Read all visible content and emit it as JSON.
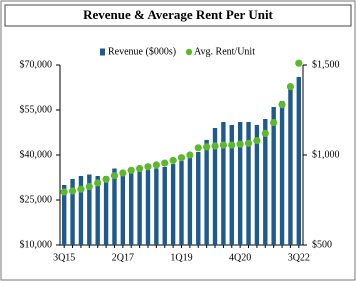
{
  "chart_data": {
    "type": "combo",
    "title": "Revenue & Average Rent Per Unit",
    "categories": [
      "3Q15",
      null,
      null,
      null,
      null,
      null,
      null,
      "2Q17",
      null,
      null,
      null,
      null,
      null,
      null,
      "1Q19",
      null,
      null,
      null,
      null,
      null,
      null,
      "4Q20",
      null,
      null,
      null,
      null,
      null,
      null,
      "3Q22"
    ],
    "series": [
      {
        "name": "Revenue ($000s)",
        "type": "bar",
        "color": "#1f5a8e",
        "axis": "y",
        "values": [
          30000,
          32000,
          33000,
          33500,
          33000,
          33000,
          35500,
          35000,
          35000,
          34500,
          35000,
          35500,
          36000,
          37000,
          38000,
          39000,
          41000,
          45000,
          49000,
          51000,
          50000,
          51000,
          51000,
          50000,
          52000,
          56000,
          58000,
          62000,
          66000
        ]
      },
      {
        "name": "Avg. Rent/Unit",
        "type": "scatter",
        "color": "#5cb82c",
        "axis": "y2",
        "values": [
          795,
          800,
          810,
          825,
          845,
          865,
          885,
          900,
          915,
          925,
          935,
          945,
          955,
          970,
          985,
          1000,
          1040,
          1045,
          1050,
          1055,
          1055,
          1060,
          1065,
          1080,
          1120,
          1180,
          1280,
          1380,
          1510
        ]
      }
    ],
    "ylim": [
      10000,
      70000
    ],
    "yticks": [
      {
        "value": 10000,
        "label": "$10,000"
      },
      {
        "value": 25000,
        "label": "$25,000"
      },
      {
        "value": 40000,
        "label": "$40,000"
      },
      {
        "value": 55000,
        "label": "$55,000"
      },
      {
        "value": 70000,
        "label": "$70,000"
      }
    ],
    "y2lim": [
      500,
      1500
    ],
    "y2ticks": [
      {
        "value": 500,
        "label": "$500"
      },
      {
        "value": 1000,
        "label": "$1,000"
      },
      {
        "value": 1500,
        "label": "$1,500"
      }
    ],
    "grid": false,
    "legend": "top"
  }
}
